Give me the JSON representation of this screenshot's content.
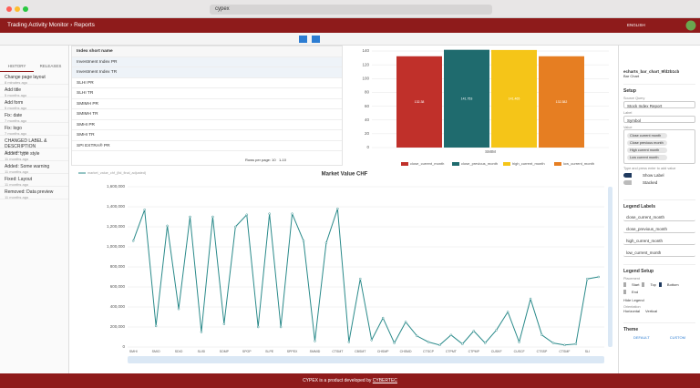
{
  "browser": {
    "address": "cypex"
  },
  "header": {
    "title": "Trading Activity Monitor",
    "crumb": "Reports",
    "language": "ENGLISH"
  },
  "sidebar": {
    "tabs": [
      "HISTORY",
      "RELEASES"
    ],
    "items": [
      {
        "title": "Change page layout",
        "time": "8 minutes ago"
      },
      {
        "title": "Add title",
        "time": "5 months ago"
      },
      {
        "title": "Add form",
        "time": "5 months ago"
      },
      {
        "title": "Fix: date",
        "time": "7 months ago"
      },
      {
        "title": "Fix: logo",
        "time": "7 months ago"
      },
      {
        "title": "CHANGED LABEL & DESCRIPTION",
        "time": "11 months ago"
      },
      {
        "title": "Added: type style",
        "time": "11 months ago"
      },
      {
        "title": "Added: Some warning",
        "time": "11 months ago"
      },
      {
        "title": "Fixed: Layout",
        "time": "11 months ago"
      },
      {
        "title": "Removed: Data preview",
        "time": "11 months ago"
      }
    ]
  },
  "table": {
    "header": "Index short name",
    "rows": [
      "Investment Index PR",
      "Investment Index TR",
      "SLHI PR",
      "SLHI TR",
      "SMIMH PR",
      "SMIMH TR",
      "SMHI PR",
      "SMHI TR",
      "SPI EXTRA® PR"
    ],
    "rows_per_page_label": "Rows per page:",
    "rows_per_page": "10",
    "range": "1-10"
  },
  "chart_data": [
    {
      "type": "bar",
      "categories": [
        "SMIM"
      ],
      "series": [
        {
          "name": "close_current_month",
          "color": "#c0302a",
          "values": [
            132.38
          ]
        },
        {
          "name": "close_previous_month",
          "color": "#1f6b6e",
          "values": [
            141.753
          ]
        },
        {
          "name": "high_current_month",
          "color": "#f5c518",
          "values": [
            141.465
          ]
        },
        {
          "name": "low_current_month",
          "color": "#e67e22",
          "values": [
            132.382
          ]
        }
      ],
      "ylim": [
        0,
        140
      ],
      "yticks": [
        0,
        20,
        40,
        60,
        80,
        100,
        120,
        140
      ],
      "grid": true
    },
    {
      "type": "line",
      "title": "Market Value CHF",
      "categories": [
        "SMHI",
        null,
        "SMIO",
        null,
        "SDIO",
        null,
        "SLISI",
        null,
        "SOMP",
        null,
        "SPOP",
        null,
        "SLPE",
        null,
        "SPPEX",
        null,
        "SMMID",
        null,
        "CTSMT",
        null,
        "CBSMT",
        null,
        "CHSMP",
        null,
        "CHSMD",
        null,
        "CTSCP",
        null,
        "CTPMT",
        null,
        "CTPMP",
        null,
        "CUSKF",
        null,
        "CUSCF",
        null,
        "CTSSP",
        null,
        "CTSMF",
        null,
        "SLI",
        null
      ],
      "series": [
        {
          "name": "market_value_chf_(ltd_final_adjusted)",
          "color": "#2a8a8a",
          "values": [
            1060000,
            1370000,
            210000,
            1210000,
            380000,
            1300000,
            150000,
            1300000,
            230000,
            1200000,
            1320000,
            200000,
            1330000,
            200000,
            1330000,
            1060000,
            60000,
            1040000,
            1380000,
            50000,
            680000,
            70000,
            290000,
            40000,
            250000,
            110000,
            50000,
            20000,
            120000,
            30000,
            160000,
            40000,
            170000,
            350000,
            50000,
            480000,
            120000,
            40000,
            20000,
            30000,
            680000,
            700000
          ]
        }
      ],
      "ylim": [
        0,
        1600000
      ],
      "yticks": [
        0,
        {
          "value": 200000,
          "label": "200,000"
        },
        {
          "value": 400000,
          "label": "400,000"
        },
        {
          "value": 600000,
          "label": "600,000"
        },
        {
          "value": 800000,
          "label": "800,000"
        },
        {
          "value": 1000000,
          "label": "1,000,000"
        },
        {
          "value": 1200000,
          "label": "1,200,000"
        },
        {
          "value": 1400000,
          "label": "1,400,000"
        },
        {
          "value": 1600000,
          "label": "1,600,000"
        }
      ],
      "grid": true
    }
  ],
  "panel": {
    "element_id": "echarts_bar_chart_9fd2b1cb",
    "element_type": "Bar Chart",
    "setup": "Setup",
    "source_label": "Source Query",
    "source": "Stock Index Report",
    "label_label": "Label",
    "label": "Symbol",
    "value_label": "Value",
    "chips": [
      "Close current month",
      "Close previous month",
      "High current month",
      "Low current month"
    ],
    "hint": "Type and press enter to add value",
    "show_label": "Show Label",
    "stacked": "Stacked",
    "legend_labels": "Legend Labels",
    "legend_fields": [
      "close_current_month",
      "close_previous_month",
      "high_current_month",
      "low_current_month"
    ],
    "legend_setup": "Legend Setup",
    "placement": "Placement",
    "placements": [
      "Start",
      "Top",
      "Bottom",
      "End"
    ],
    "hide_legend": "Hide Legend",
    "orientation": "Orientation",
    "orientations": [
      "Horizontal",
      "Vertical"
    ],
    "theme": "Theme",
    "themes": [
      "DEFAULT",
      "CUSTOM"
    ]
  },
  "footer": {
    "text": "CYPEX is a product developed by",
    "brand": "CYBERTEC"
  }
}
